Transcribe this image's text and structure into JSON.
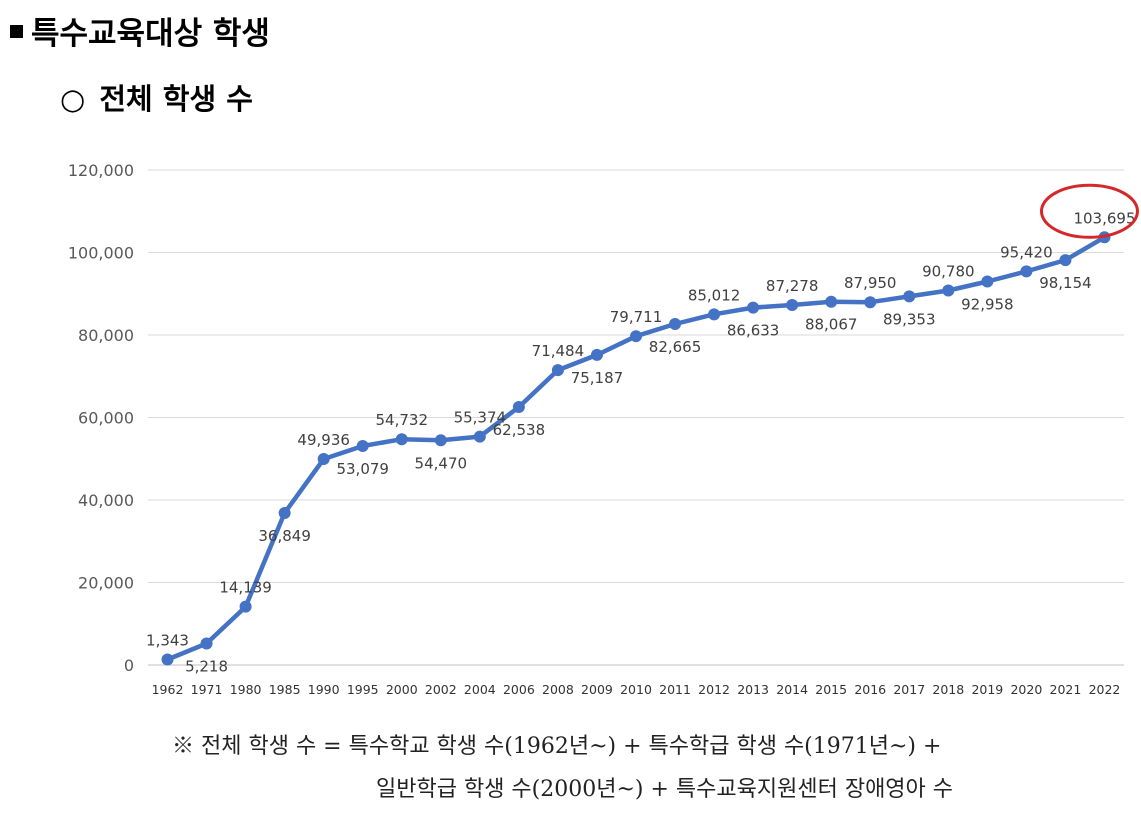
{
  "heading": {
    "bullet": "■",
    "title": "특수교육대상 학생"
  },
  "subheading": {
    "bullet": "○",
    "title": "전체 학생 수"
  },
  "chart_data": {
    "type": "line",
    "title": "",
    "xlabel": "",
    "ylabel": "",
    "ylim": [
      0,
      120000
    ],
    "yticks": [
      0,
      20000,
      40000,
      60000,
      80000,
      100000,
      120000
    ],
    "ytick_labels": [
      "0",
      "20,000",
      "40,000",
      "60,000",
      "80,000",
      "100,000",
      "120,000"
    ],
    "grid": "horizontal",
    "legend": "none",
    "series_color": "#4472C4",
    "categories": [
      "1962",
      "1971",
      "1980",
      "1985",
      "1990",
      "1995",
      "2000",
      "2002",
      "2004",
      "2006",
      "2008",
      "2009",
      "2010",
      "2011",
      "2012",
      "2013",
      "2014",
      "2015",
      "2016",
      "2017",
      "2018",
      "2019",
      "2020",
      "2021",
      "2022"
    ],
    "series": [
      {
        "values": [
          1343,
          5218,
          14139,
          36849,
          49936,
          53079,
          54732,
          54470,
          55374,
          62538,
          71484,
          75187,
          79711,
          82665,
          85012,
          86633,
          87278,
          88067,
          87950,
          89353,
          90780,
          92958,
          95420,
          98154,
          103695
        ]
      }
    ],
    "data_labels": [
      "1,343",
      "5,218",
      "14,139",
      "36,849",
      "49,936",
      "53,079",
      "54,732",
      "54,470",
      "55,374",
      "62,538",
      "71,484",
      "75,187",
      "79,711",
      "82,665",
      "85,012",
      "86,633",
      "87,278",
      "88,067",
      "87,950",
      "89,353",
      "90,780",
      "92,958",
      "95,420",
      "98,154",
      "103,695"
    ],
    "label_positions": [
      "above",
      "below",
      "above",
      "below",
      "above",
      "below",
      "above",
      "below",
      "above",
      "below",
      "above",
      "below",
      "above",
      "below",
      "above",
      "below",
      "above",
      "below",
      "above",
      "below",
      "above",
      "below",
      "above",
      "below",
      "above"
    ],
    "highlight": {
      "category": "2022",
      "shape": "ellipse",
      "color": "#D62828"
    }
  },
  "footnote": {
    "line1": "※ 전체 학생 수 = 특수학교 학생 수(1962년~) + 특수학급 학생 수(1971년~) +",
    "line2": "일반학급 학생 수(2000년~) + 특수교육지원센터 장애영아 수"
  }
}
